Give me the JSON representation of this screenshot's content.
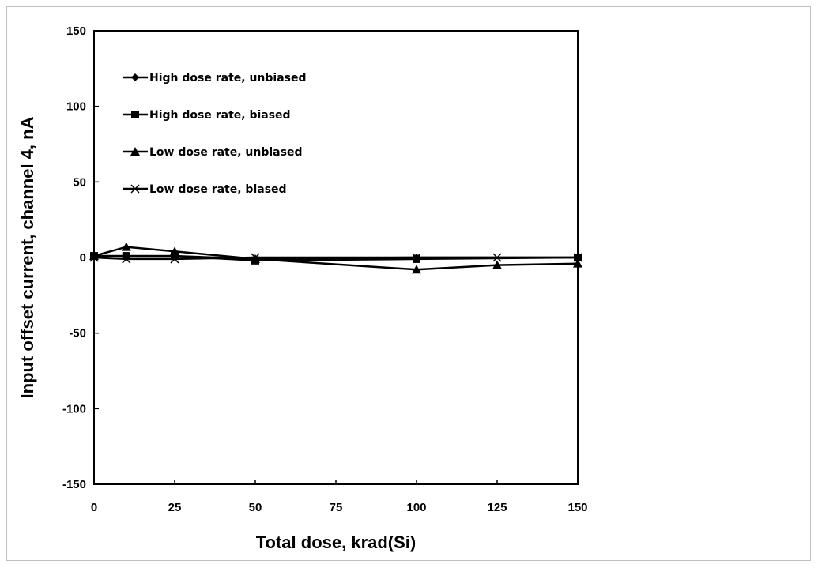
{
  "chart_data": {
    "type": "line",
    "xlabel": "Total dose, krad(Si)",
    "ylabel": "Input offset current, channel 4, nA",
    "xlim": [
      0,
      150
    ],
    "ylim": [
      -150,
      150
    ],
    "xticks": [
      0,
      25,
      50,
      75,
      100,
      125,
      150
    ],
    "yticks": [
      -150,
      -100,
      -50,
      0,
      50,
      100,
      150
    ],
    "grid": false,
    "legend_position": "top-left",
    "series": [
      {
        "name": "High dose rate, unbiased",
        "marker": "diamond",
        "color": "#000000",
        "points": [
          [
            0,
            1
          ],
          [
            10,
            1
          ],
          [
            25,
            1
          ],
          [
            50,
            -1
          ],
          [
            100,
            0
          ],
          [
            150,
            0
          ]
        ]
      },
      {
        "name": "High dose rate, biased",
        "marker": "square",
        "color": "#000000",
        "points": [
          [
            0,
            1
          ],
          [
            10,
            1
          ],
          [
            25,
            1
          ],
          [
            50,
            -2
          ],
          [
            100,
            -1
          ],
          [
            150,
            0
          ]
        ]
      },
      {
        "name": "Low dose rate, unbiased",
        "marker": "triangle",
        "color": "#000000",
        "points": [
          [
            0,
            1
          ],
          [
            10,
            7
          ],
          [
            25,
            4
          ],
          [
            50,
            -1
          ],
          [
            100,
            -8
          ],
          [
            125,
            -5
          ],
          [
            150,
            -4
          ]
        ]
      },
      {
        "name": "Low dose rate, biased",
        "marker": "x",
        "color": "#000000",
        "points": [
          [
            0,
            0
          ],
          [
            10,
            -1
          ],
          [
            25,
            -1
          ],
          [
            50,
            0
          ],
          [
            100,
            0
          ],
          [
            125,
            0
          ],
          [
            150,
            0
          ]
        ]
      }
    ]
  }
}
